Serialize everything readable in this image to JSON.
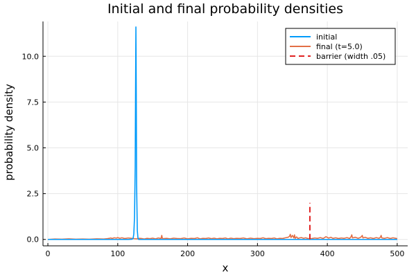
{
  "chart_data": {
    "type": "line",
    "title": "Initial and final probability densities",
    "xlabel": "x",
    "ylabel": "probability density",
    "xlim": [
      -7,
      515
    ],
    "ylim": [
      -0.35,
      11.9
    ],
    "xticks": [
      0,
      100,
      200,
      300,
      400,
      500
    ],
    "xtick_labels": [
      "0",
      "100",
      "200",
      "300",
      "400",
      "500"
    ],
    "yticks": [
      0,
      2.5,
      5,
      7.5,
      10
    ],
    "ytick_labels": [
      "0.0",
      "2.5",
      "5.0",
      "7.5",
      "10.0"
    ],
    "grid": true,
    "legend_position": "top-right",
    "series": [
      {
        "name": "initial",
        "color": "#009AFA",
        "style": "solid",
        "x": [
          0,
          50,
          100,
          115,
          120,
          122,
          123,
          124,
          125,
          125.5,
          126,
          126.5,
          127,
          128,
          129,
          130,
          140,
          200,
          300,
          400,
          500
        ],
        "y": [
          0,
          0,
          0,
          0,
          0.01,
          0.05,
          0.3,
          1.2,
          4.0,
          8.0,
          11.6,
          8.0,
          3.0,
          0.5,
          0.05,
          0,
          0,
          0,
          0,
          0,
          0
        ]
      },
      {
        "name": "final (t=5.0)",
        "color": "#E26F46",
        "style": "solid",
        "x": [
          0,
          10,
          20,
          30,
          40,
          50,
          60,
          70,
          80,
          85,
          88,
          90,
          92,
          95,
          98,
          100,
          103,
          106,
          110,
          115,
          120,
          124,
          128,
          131,
          134,
          138,
          142,
          146,
          150,
          154,
          158,
          162,
          163,
          164,
          170,
          175,
          180,
          185,
          190,
          195,
          200,
          205,
          210,
          214,
          218,
          222,
          226,
          230,
          234,
          238,
          242,
          246,
          250,
          254,
          258,
          262,
          266,
          270,
          275,
          280,
          285,
          290,
          295,
          300,
          304,
          308,
          312,
          316,
          320,
          324,
          328,
          332,
          336,
          340,
          344,
          346,
          347,
          348,
          350,
          352,
          353,
          354,
          356,
          358,
          360,
          363,
          366,
          369,
          372,
          375,
          378,
          382,
          386,
          390,
          394,
          398,
          402,
          405,
          408,
          412,
          416,
          420,
          424,
          428,
          432,
          434,
          435,
          436,
          440,
          444,
          447,
          449,
          450,
          451,
          454,
          458,
          462,
          466,
          470,
          474,
          476,
          477,
          478,
          482,
          486,
          490,
          494,
          498,
          500
        ],
        "y": [
          0,
          0.02,
          0.01,
          0.03,
          0.01,
          0.02,
          0.01,
          0.03,
          0.02,
          0.04,
          0.06,
          0.08,
          0.05,
          0.09,
          0.07,
          0.1,
          0.06,
          0.09,
          0.05,
          0.08,
          0.06,
          0.04,
          0.03,
          0.06,
          0.05,
          0.02,
          0.06,
          0.04,
          0.07,
          0.03,
          0.08,
          0.05,
          0.22,
          0.04,
          0.06,
          0.03,
          0.07,
          0.05,
          0.04,
          0.08,
          0.03,
          0.06,
          0.05,
          0.09,
          0.03,
          0.06,
          0.05,
          0.08,
          0.04,
          0.07,
          0.03,
          0.06,
          0.05,
          0.08,
          0.03,
          0.07,
          0.04,
          0.06,
          0.05,
          0.08,
          0.03,
          0.07,
          0.04,
          0.06,
          0.05,
          0.09,
          0.04,
          0.06,
          0.05,
          0.08,
          0.03,
          0.06,
          0.05,
          0.09,
          0.12,
          0.18,
          0.28,
          0.1,
          0.22,
          0.08,
          0.25,
          0.06,
          0.14,
          0.05,
          0.08,
          0.1,
          0.06,
          0.09,
          0.05,
          0.04,
          0.05,
          0.08,
          0.06,
          0.1,
          0.05,
          0.15,
          0.07,
          0.12,
          0.06,
          0.09,
          0.05,
          0.08,
          0.06,
          0.1,
          0.05,
          0.15,
          0.25,
          0.08,
          0.12,
          0.06,
          0.1,
          0.16,
          0.22,
          0.08,
          0.12,
          0.06,
          0.09,
          0.05,
          0.1,
          0.06,
          0.12,
          0.22,
          0.08,
          0.06,
          0.1,
          0.05,
          0.09,
          0.06,
          0.04
        ]
      },
      {
        "name": "barrier (width .05)",
        "color": "#E02020",
        "style": "dashed",
        "x": [
          375,
          375
        ],
        "y": [
          0,
          2.0
        ]
      }
    ]
  }
}
